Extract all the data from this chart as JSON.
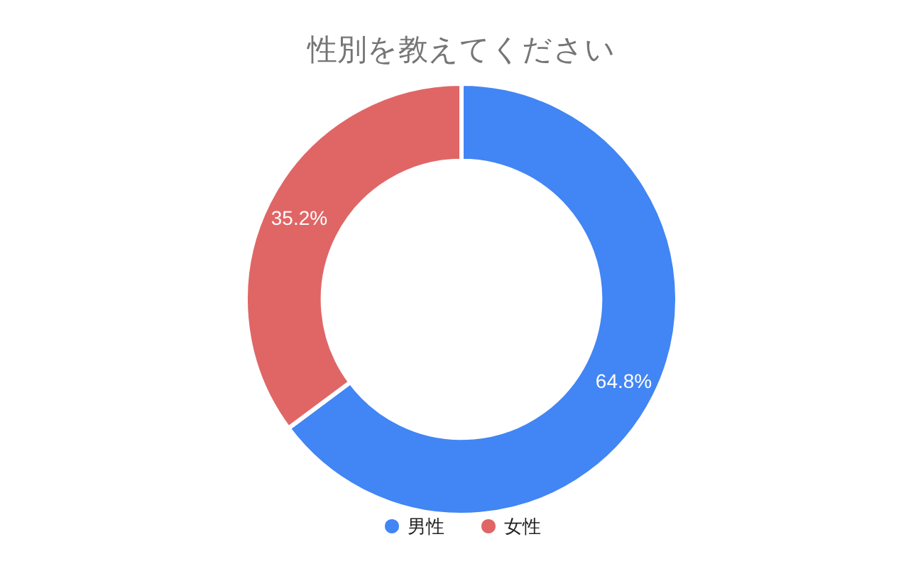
{
  "chart_data": {
    "type": "donut",
    "title": "性別を教えてください",
    "categories": [
      "男性",
      "女性"
    ],
    "values": [
      64.8,
      35.2
    ],
    "colors": [
      "#4285f4",
      "#e06666"
    ],
    "value_labels": [
      "64.8%",
      "35.2%"
    ],
    "legend": "bottom"
  }
}
